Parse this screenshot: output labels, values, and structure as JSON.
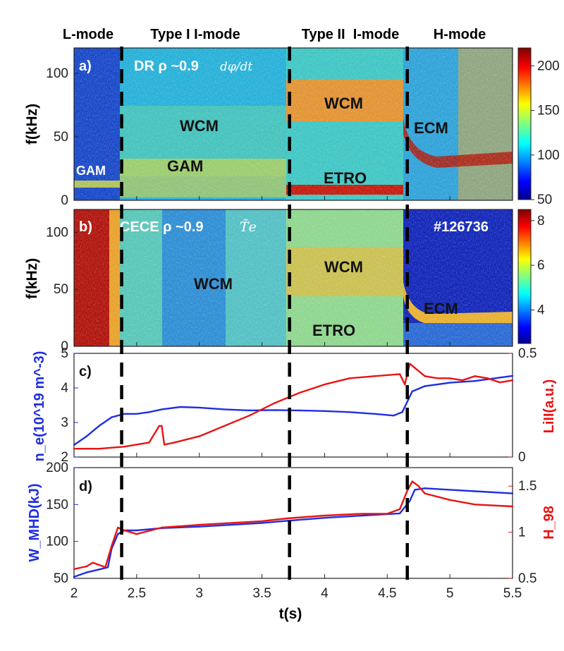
{
  "regimes": [
    "L-mode",
    "Type I I-mode",
    "Type II  I-mode",
    "H-mode"
  ],
  "colors": {
    "blue": "#1f2fe0",
    "red": "#e81414",
    "axis": "#222222"
  },
  "transitions_s": [
    2.38,
    3.72,
    4.66
  ],
  "x_axis": {
    "label": "t(s)",
    "range": [
      2,
      5.5
    ],
    "ticks": [
      "2",
      "2.5",
      "3",
      "3.5",
      "4",
      "4.5",
      "5",
      "5.5"
    ]
  },
  "chart_data": [
    {
      "type": "heatmap",
      "panel": "a)",
      "title": "DR ρ ~0.9",
      "title_math": "dφ/dt",
      "ylabel": "f(kHz)",
      "ylim": [
        0,
        120
      ],
      "yticks": [
        "0",
        "50",
        "100"
      ],
      "colorbar": {
        "range": [
          50,
          220
        ],
        "ticks": [
          "50",
          "100",
          "150",
          "200"
        ]
      },
      "annotations": [
        "WCM",
        "GAM",
        "GAM",
        "WCM",
        "ETRO",
        "ECM"
      ]
    },
    {
      "type": "heatmap",
      "panel": "b)",
      "title": "CECE ρ ~0.9",
      "title_math": "T̃e",
      "ylabel": "f(kHz)",
      "ylim": [
        0,
        120
      ],
      "yticks": [
        "0",
        "50",
        "100"
      ],
      "shot": "#126736",
      "colorbar": {
        "range": [
          2.5,
          8.5
        ],
        "ticks": [
          "4",
          "6",
          "8"
        ]
      },
      "annotations": [
        "WCM",
        "WCM",
        "ETRO",
        "ECM"
      ]
    },
    {
      "type": "line",
      "panel": "c)",
      "ylabel_left": "n_e(10^19 m^-3)",
      "ylabel_right": "LiII(a.u.)",
      "ylim_left": [
        2,
        5
      ],
      "yticks_left": [
        "2",
        "3",
        "4",
        "5"
      ],
      "ylim_right": [
        0,
        0.5
      ],
      "yticks_right": [
        "0",
        "0.5"
      ],
      "series": [
        {
          "name": "n_e",
          "axis": "left",
          "color": "blue",
          "x": [
            2.0,
            2.1,
            2.2,
            2.3,
            2.4,
            2.5,
            2.6,
            2.7,
            2.85,
            3.0,
            3.2,
            3.4,
            3.6,
            3.8,
            4.0,
            4.2,
            4.4,
            4.55,
            4.62,
            4.66,
            4.7,
            4.8,
            4.9,
            5.0,
            5.2,
            5.4,
            5.5
          ],
          "values": [
            2.35,
            2.6,
            2.9,
            3.15,
            3.25,
            3.25,
            3.3,
            3.38,
            3.45,
            3.43,
            3.38,
            3.35,
            3.36,
            3.35,
            3.33,
            3.3,
            3.25,
            3.2,
            3.3,
            3.6,
            3.9,
            4.05,
            4.1,
            4.15,
            4.2,
            4.3,
            4.35
          ]
        },
        {
          "name": "LiII",
          "axis": "right",
          "color": "red",
          "x": [
            2.0,
            2.2,
            2.4,
            2.6,
            2.68,
            2.7,
            2.72,
            2.8,
            3.0,
            3.2,
            3.4,
            3.6,
            3.8,
            4.0,
            4.2,
            4.4,
            4.6,
            4.64,
            4.68,
            4.72,
            4.8,
            4.9,
            5.0,
            5.1,
            5.2,
            5.3,
            5.4,
            5.5
          ],
          "values": [
            0.04,
            0.04,
            0.05,
            0.07,
            0.15,
            0.15,
            0.06,
            0.07,
            0.1,
            0.15,
            0.2,
            0.26,
            0.31,
            0.35,
            0.38,
            0.39,
            0.4,
            0.35,
            0.45,
            0.43,
            0.39,
            0.38,
            0.38,
            0.37,
            0.39,
            0.38,
            0.36,
            0.37
          ]
        }
      ]
    },
    {
      "type": "line",
      "panel": "d)",
      "ylabel_left": "W_MHD(kJ)",
      "ylabel_right": "H_98",
      "ylim_left": [
        50,
        200
      ],
      "yticks_left": [
        "50",
        "100",
        "150",
        "200"
      ],
      "ylim_right": [
        0.5,
        1.7
      ],
      "yticks_right": [
        "0.5",
        "1",
        "1.5"
      ],
      "series": [
        {
          "name": "W_MHD",
          "axis": "left",
          "color": "blue",
          "x": [
            2.0,
            2.1,
            2.2,
            2.27,
            2.3,
            2.35,
            2.4,
            2.5,
            2.7,
            3.0,
            3.5,
            3.7,
            4.0,
            4.3,
            4.6,
            4.68,
            4.72,
            4.8,
            5.0,
            5.2,
            5.5
          ],
          "values": [
            52,
            58,
            62,
            65,
            90,
            110,
            115,
            115,
            118,
            120,
            125,
            128,
            132,
            135,
            138,
            155,
            170,
            172,
            170,
            168,
            165
          ]
        },
        {
          "name": "H_98",
          "axis": "right",
          "color": "red",
          "x": [
            2.0,
            2.1,
            2.15,
            2.25,
            2.3,
            2.35,
            2.4,
            2.5,
            2.7,
            3.0,
            3.5,
            3.7,
            4.0,
            4.3,
            4.5,
            4.6,
            4.66,
            4.7,
            4.75,
            4.8,
            5.0,
            5.2,
            5.5
          ],
          "values": [
            0.6,
            0.63,
            0.67,
            0.62,
            0.85,
            1.05,
            1.02,
            0.98,
            1.05,
            1.08,
            1.12,
            1.15,
            1.18,
            1.2,
            1.2,
            1.25,
            1.45,
            1.55,
            1.5,
            1.42,
            1.35,
            1.3,
            1.28
          ]
        }
      ]
    }
  ]
}
